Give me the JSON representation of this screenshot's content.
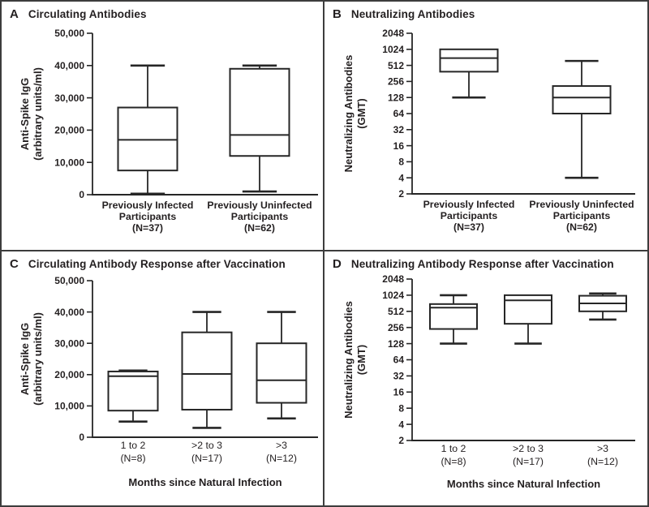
{
  "colors": {
    "background": "#ffffff",
    "line": "#262626",
    "text": "#231f20",
    "border": "#3d3d3d",
    "box_fill": "#ffffff"
  },
  "chart_data": [
    {
      "type": "box",
      "panel_label": "A",
      "title": "Circulating Antibodies",
      "y_axis": {
        "label_lines": [
          "Anti-Spike IgG",
          "(arbitrary units/ml)"
        ],
        "scale": "linear",
        "ylim": [
          0,
          50000
        ],
        "tick_values": [
          0,
          10000,
          20000,
          30000,
          40000,
          50000
        ],
        "tick_labels": [
          "0",
          "10,000",
          "20,000",
          "30,000",
          "40,000",
          "50,000"
        ],
        "grid": false
      },
      "x_axis": {
        "title": "",
        "categories": [
          [
            "Previously Infected",
            "Participants",
            "(N=37)"
          ],
          [
            "Previously Uninfected",
            "Participants",
            "(N=62)"
          ]
        ]
      },
      "boxes": [
        {
          "whisker_low": 300,
          "q1": 7500,
          "median": 17000,
          "q3": 27000,
          "whisker_high": 40000
        },
        {
          "whisker_low": 1000,
          "q1": 12000,
          "median": 18500,
          "q3": 39000,
          "whisker_high": 40000
        }
      ]
    },
    {
      "type": "box",
      "panel_label": "B",
      "title": "Neutralizing Antibodies",
      "y_axis": {
        "label_lines": [
          "Neutralizing Antibodies",
          "(GMT)"
        ],
        "scale": "log2",
        "ylim": [
          2,
          2048
        ],
        "tick_values": [
          2,
          4,
          8,
          16,
          32,
          64,
          128,
          256,
          512,
          1024,
          2048
        ],
        "tick_labels": [
          "2",
          "4",
          "8",
          "16",
          "32",
          "64",
          "128",
          "256",
          "512",
          "1024",
          "2048"
        ],
        "grid": false
      },
      "x_axis": {
        "title": "",
        "categories": [
          [
            "Previously Infected",
            "Participants",
            "(N=37)"
          ],
          [
            "Previously Uninfected",
            "Participants",
            "(N=62)"
          ]
        ]
      },
      "boxes": [
        {
          "whisker_low": 128,
          "q1": 390,
          "median": 700,
          "q3": 1024,
          "whisker_high": 1024
        },
        {
          "whisker_low": 4,
          "q1": 64,
          "median": 128,
          "q3": 210,
          "whisker_high": 620
        }
      ]
    },
    {
      "type": "box",
      "panel_label": "C",
      "title": "Circulating Antibody Response after Vaccination",
      "y_axis": {
        "label_lines": [
          "Anti-Spike IgG",
          "(arbitrary units/ml)"
        ],
        "scale": "linear",
        "ylim": [
          0,
          50000
        ],
        "tick_values": [
          0,
          10000,
          20000,
          30000,
          40000,
          50000
        ],
        "tick_labels": [
          "0",
          "10,000",
          "20,000",
          "30,000",
          "40,000",
          "50,000"
        ],
        "grid": false
      },
      "x_axis": {
        "title": "Months since Natural Infection",
        "categories": [
          [
            "1 to 2",
            "(N=8)"
          ],
          [
            ">2 to 3",
            "(N=17)"
          ],
          [
            ">3",
            "(N=12)"
          ]
        ]
      },
      "boxes": [
        {
          "whisker_low": 5000,
          "q1": 8500,
          "median": 19500,
          "q3": 21000,
          "whisker_high": 21300
        },
        {
          "whisker_low": 3000,
          "q1": 8800,
          "median": 20200,
          "q3": 33500,
          "whisker_high": 40000
        },
        {
          "whisker_low": 6000,
          "q1": 11000,
          "median": 18200,
          "q3": 30000,
          "whisker_high": 40000
        }
      ]
    },
    {
      "type": "box",
      "panel_label": "D",
      "title": "Neutralizing Antibody Response after Vaccination",
      "y_axis": {
        "label_lines": [
          "Neutralizing Antibodies",
          "(GMT)"
        ],
        "scale": "log2",
        "ylim": [
          2,
          2048
        ],
        "tick_values": [
          2,
          4,
          8,
          16,
          32,
          64,
          128,
          256,
          512,
          1024,
          2048
        ],
        "tick_labels": [
          "2",
          "4",
          "8",
          "16",
          "32",
          "64",
          "128",
          "256",
          "512",
          "1024",
          "2048"
        ],
        "grid": false
      },
      "x_axis": {
        "title": "Months since Natural Infection",
        "categories": [
          [
            "1 to 2",
            "(N=8)"
          ],
          [
            ">2 to 3",
            "(N=17)"
          ],
          [
            ">3",
            "(N=12)"
          ]
        ]
      },
      "boxes": [
        {
          "whisker_low": 128,
          "q1": 240,
          "median": 600,
          "q3": 700,
          "whisker_high": 1024
        },
        {
          "whisker_low": 128,
          "q1": 300,
          "median": 820,
          "q3": 1024,
          "whisker_high": 1024
        },
        {
          "whisker_low": 360,
          "q1": 512,
          "median": 720,
          "q3": 1000,
          "whisker_high": 1100
        }
      ]
    }
  ]
}
